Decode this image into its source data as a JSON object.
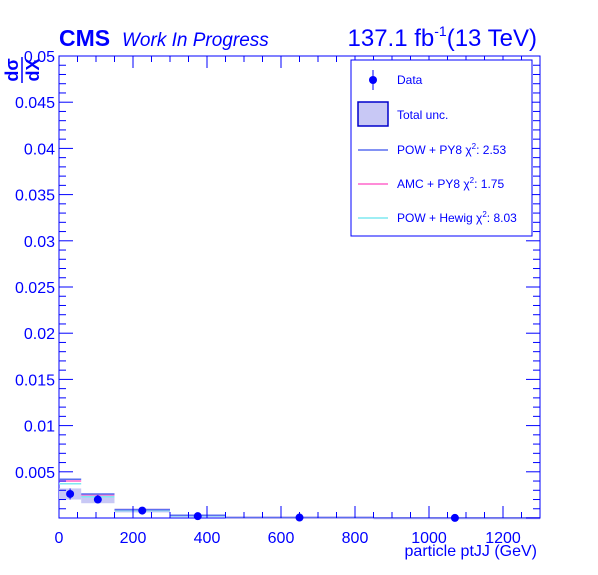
{
  "header": {
    "experiment": "CMS",
    "status": "Work In Progress",
    "lumi_value": "137.1 fb",
    "lumi_exponent": "-1",
    "energy": "(13 TeV)"
  },
  "colors": {
    "axis": "#0000ff",
    "data": "#0000ff",
    "unc_fill": "#c8c8f5",
    "pow_py8": "#5a6ef0",
    "amc_py8": "#ff66cc",
    "pow_herwig": "#7fe8f0"
  },
  "chart_data": {
    "type": "scatter",
    "xlabel": "particle ptJJ (GeV)",
    "ylabel_numerator": "dσ",
    "ylabel_denominator": "dX",
    "xlim": [
      0,
      1300
    ],
    "ylim": [
      0,
      0.05
    ],
    "x_ticks": [
      "0",
      "200",
      "400",
      "600",
      "800",
      "1000",
      "1200"
    ],
    "y_ticks": [
      "0.005",
      "0.01",
      "0.015",
      "0.02",
      "0.025",
      "0.03",
      "0.035",
      "0.04",
      "0.045",
      "0.05"
    ],
    "bins": [
      {
        "low": 0,
        "high": 60,
        "center": 30,
        "data": 0.0026,
        "unc_low": 0.002,
        "unc_high": 0.0032,
        "pow_py8": 0.0042,
        "amc_py8": 0.004,
        "pow_herwig": 0.0037
      },
      {
        "low": 60,
        "high": 150,
        "center": 105,
        "data": 0.002,
        "unc_low": 0.0016,
        "unc_high": 0.0025,
        "pow_py8": 0.0026,
        "amc_py8": 0.0025,
        "pow_herwig": 0.0023
      },
      {
        "low": 150,
        "high": 300,
        "center": 225,
        "data": 0.0008,
        "unc_low": 0.0006,
        "unc_high": 0.001,
        "pow_py8": 0.0009,
        "amc_py8": 0.0009,
        "pow_herwig": 0.0008
      },
      {
        "low": 300,
        "high": 450,
        "center": 375,
        "data": 0.0002,
        "unc_low": 0.0001,
        "unc_high": 0.0003,
        "pow_py8": 0.0003,
        "amc_py8": 0.0003,
        "pow_herwig": 0.00025
      },
      {
        "low": 450,
        "high": 850,
        "center": 650,
        "data": 5e-05,
        "unc_low": 3e-05,
        "unc_high": 7e-05,
        "pow_py8": 6e-05,
        "amc_py8": 6e-05,
        "pow_herwig": 5e-05
      },
      {
        "low": 850,
        "high": 1300,
        "center": 1070,
        "data": 1e-05,
        "unc_low": 5e-06,
        "unc_high": 1.5e-05,
        "pow_py8": 1e-05,
        "amc_py8": 1e-05,
        "pow_herwig": 1e-05
      }
    ],
    "legend": [
      {
        "key": "data",
        "label": "Data",
        "chi2": ""
      },
      {
        "key": "unc",
        "label": "Total unc.",
        "chi2": ""
      },
      {
        "key": "pow_py8",
        "label": "POW + PY8",
        "chi2": ": 2.53"
      },
      {
        "key": "amc_py8",
        "label": "AMC + PY8",
        "chi2": ": 1.75"
      },
      {
        "key": "pow_herwig",
        "label": "POW + Hewig",
        "chi2": ": 8.03"
      }
    ],
    "legend_position": "top-right",
    "grid": false
  }
}
